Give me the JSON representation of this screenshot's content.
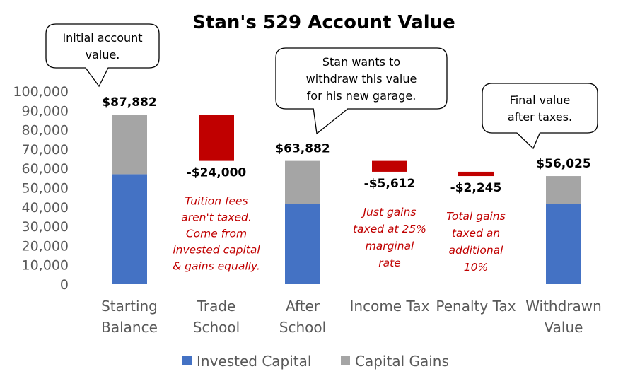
{
  "chart_data": {
    "type": "bar",
    "subtype": "waterfall",
    "title": "Stan's 529 Account Value",
    "ylim": [
      0,
      100000
    ],
    "yticks": [
      "0",
      "10,000",
      "20,000",
      "30,000",
      "40,000",
      "50,000",
      "60,000",
      "70,000",
      "80,000",
      "90,000",
      "100,000"
    ],
    "grid": false,
    "legend_position": "bottom",
    "categories": [
      [
        "Starting",
        "Balance"
      ],
      [
        "Trade",
        "School"
      ],
      [
        "After",
        "School"
      ],
      [
        "Income Tax"
      ],
      [
        "Penalty Tax"
      ],
      [
        "Withdrawn",
        "Value"
      ]
    ],
    "series": [
      {
        "name": "Invested Capital",
        "color": "#4472c4",
        "values": [
          57000,
          null,
          41500,
          null,
          null,
          41500
        ]
      },
      {
        "name": "Capital Gains",
        "color": "#a5a5a5",
        "values": [
          30882,
          null,
          22382,
          null,
          null,
          14525
        ]
      }
    ],
    "changes": [
      {
        "category_index": 1,
        "value": -24000,
        "from": 87882,
        "to": 63882,
        "color": "#c00000"
      },
      {
        "category_index": 3,
        "value": -5612,
        "from": 63882,
        "to": 58270,
        "color": "#c00000"
      },
      {
        "category_index": 4,
        "value": -2245,
        "from": 58270,
        "to": 56025,
        "color": "#c00000"
      }
    ],
    "data_labels": [
      "$87,882",
      "-$24,000",
      "$63,882",
      "-$5,612",
      "-$2,245",
      "$56,025"
    ],
    "notes": [
      {
        "category_index": 1,
        "lines": [
          "Tuition fees",
          "aren't taxed.",
          "Come from",
          "invested capital",
          "& gains equally."
        ]
      },
      {
        "category_index": 3,
        "lines": [
          "Just gains",
          "taxed at 25%",
          "marginal",
          "rate"
        ]
      },
      {
        "category_index": 4,
        "lines": [
          "Total gains",
          "taxed an",
          "additional",
          "10%"
        ]
      }
    ],
    "callouts": [
      {
        "category_index": 0,
        "lines": [
          "Initial account",
          "value."
        ]
      },
      {
        "category_index": 2,
        "lines": [
          "Stan wants to",
          "withdraw this value",
          "for his new garage."
        ]
      },
      {
        "category_index": 5,
        "lines": [
          "Final value",
          "after taxes."
        ]
      }
    ]
  }
}
